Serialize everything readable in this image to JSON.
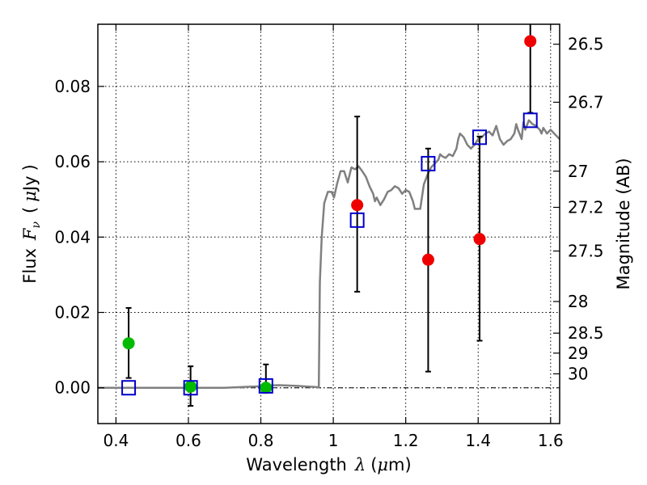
{
  "chart_data": {
    "type": "scatter",
    "title": "",
    "xlabel": {
      "prefix": "Wavelength",
      "symbol": "λ",
      "unit_open": "(",
      "unit_mu": "μ",
      "unit_rest": "m)"
    },
    "ylabel": {
      "prefix": "Flux",
      "symbol": "F",
      "subscript": "ν",
      "unit_open": "(",
      "unit_mu": "μ",
      "unit_rest": "Jy",
      "unit_close": ")"
    },
    "y2label": "Magnitude (AB)",
    "xlim": [
      0.35,
      1.625
    ],
    "ylim": [
      -0.0095,
      0.0965
    ],
    "grid": true,
    "x_ticks": [
      {
        "value": 0.4,
        "label": "0.4"
      },
      {
        "value": 0.6,
        "label": "0.6"
      },
      {
        "value": 0.8,
        "label": "0.8"
      },
      {
        "value": 1.0,
        "label": "1"
      },
      {
        "value": 1.2,
        "label": "1.2"
      },
      {
        "value": 1.4,
        "label": "1.4"
      },
      {
        "value": 1.6,
        "label": "1.6"
      }
    ],
    "y_ticks": [
      {
        "value": 0.0,
        "label": "0.00"
      },
      {
        "value": 0.02,
        "label": "0.02"
      },
      {
        "value": 0.04,
        "label": "0.04"
      },
      {
        "value": 0.06,
        "label": "0.06"
      },
      {
        "value": 0.08,
        "label": "0.08"
      }
    ],
    "y2_ticks": [
      {
        "flux": 0.0912,
        "label": "26.5"
      },
      {
        "flux": 0.0758,
        "label": "26.7"
      },
      {
        "flux": 0.0575,
        "label": "27"
      },
      {
        "flux": 0.0479,
        "label": "27.2"
      },
      {
        "flux": 0.0363,
        "label": "27.5"
      },
      {
        "flux": 0.0229,
        "label": "28"
      },
      {
        "flux": 0.0145,
        "label": "28.5"
      },
      {
        "flux": 0.0092,
        "label": "29"
      },
      {
        "flux": 0.0037,
        "label": "30"
      }
    ],
    "zero_line": 0.0,
    "series": [
      {
        "name": "model-sed",
        "kind": "line",
        "color": "#808080",
        "points": [
          [
            0.35,
            0.0
          ],
          [
            0.45,
            0.0
          ],
          [
            0.6,
            0.0
          ],
          [
            0.7,
            0.0
          ],
          [
            0.75,
            0.0002
          ],
          [
            0.8,
            0.0004
          ],
          [
            0.82,
            0.0006
          ],
          [
            0.85,
            0.0007
          ],
          [
            0.9,
            0.0005
          ],
          [
            0.95,
            0.0002
          ],
          [
            0.96,
            0.0001
          ],
          [
            0.963,
            0.028
          ],
          [
            0.968,
            0.04
          ],
          [
            0.975,
            0.049
          ],
          [
            0.985,
            0.052
          ],
          [
            0.995,
            0.052
          ],
          [
            1.002,
            0.0505
          ],
          [
            1.01,
            0.054
          ],
          [
            1.02,
            0.0575
          ],
          [
            1.03,
            0.0575
          ],
          [
            1.04,
            0.0545
          ],
          [
            1.05,
            0.0585
          ],
          [
            1.06,
            0.058
          ],
          [
            1.07,
            0.0588
          ],
          [
            1.08,
            0.0575
          ],
          [
            1.09,
            0.056
          ],
          [
            1.1,
            0.0535
          ],
          [
            1.11,
            0.0515
          ],
          [
            1.115,
            0.0495
          ],
          [
            1.12,
            0.0505
          ],
          [
            1.13,
            0.0485
          ],
          [
            1.14,
            0.05
          ],
          [
            1.15,
            0.052
          ],
          [
            1.16,
            0.0525
          ],
          [
            1.17,
            0.0535
          ],
          [
            1.18,
            0.053
          ],
          [
            1.19,
            0.0515
          ],
          [
            1.2,
            0.0525
          ],
          [
            1.21,
            0.052
          ],
          [
            1.22,
            0.0495
          ],
          [
            1.225,
            0.0475
          ],
          [
            1.24,
            0.0475
          ],
          [
            1.25,
            0.054
          ],
          [
            1.26,
            0.0565
          ],
          [
            1.27,
            0.0585
          ],
          [
            1.28,
            0.0595
          ],
          [
            1.29,
            0.0605
          ],
          [
            1.295,
            0.062
          ],
          [
            1.3,
            0.0615
          ],
          [
            1.31,
            0.061
          ],
          [
            1.32,
            0.062
          ],
          [
            1.33,
            0.0615
          ],
          [
            1.34,
            0.0635
          ],
          [
            1.345,
            0.066
          ],
          [
            1.35,
            0.0675
          ],
          [
            1.36,
            0.0665
          ],
          [
            1.37,
            0.0645
          ],
          [
            1.38,
            0.0635
          ],
          [
            1.39,
            0.0645
          ],
          [
            1.4,
            0.066
          ],
          [
            1.41,
            0.0665
          ],
          [
            1.42,
            0.0675
          ],
          [
            1.43,
            0.068
          ],
          [
            1.44,
            0.067
          ],
          [
            1.45,
            0.0695
          ],
          [
            1.46,
            0.066
          ],
          [
            1.47,
            0.0645
          ],
          [
            1.48,
            0.0655
          ],
          [
            1.49,
            0.066
          ],
          [
            1.5,
            0.0675
          ],
          [
            1.505,
            0.07
          ],
          [
            1.51,
            0.0685
          ],
          [
            1.52,
            0.066
          ],
          [
            1.525,
            0.0705
          ],
          [
            1.53,
            0.0685
          ],
          [
            1.54,
            0.071
          ],
          [
            1.55,
            0.07
          ],
          [
            1.56,
            0.0695
          ],
          [
            1.57,
            0.0685
          ],
          [
            1.575,
            0.0675
          ],
          [
            1.58,
            0.069
          ],
          [
            1.59,
            0.0675
          ],
          [
            1.6,
            0.0685
          ],
          [
            1.61,
            0.0675
          ],
          [
            1.625,
            0.066
          ]
        ]
      },
      {
        "name": "model-bands",
        "kind": "open-square",
        "color": "#0000cc",
        "points": [
          [
            0.435,
            0.0
          ],
          [
            0.606,
            0.0
          ],
          [
            0.814,
            0.0005
          ],
          [
            1.066,
            0.0445
          ],
          [
            1.262,
            0.0595
          ],
          [
            1.404,
            0.0665
          ],
          [
            1.544,
            0.071
          ]
        ]
      },
      {
        "name": "observed-optical",
        "kind": "filled-circle",
        "color": "#00bb00",
        "points": [
          [
            0.435,
            0.0118,
            0.0026,
            0.0212
          ],
          [
            0.606,
            0.0003,
            -0.0048,
            0.0057
          ],
          [
            0.814,
            0.0,
            -0.0013,
            0.0062
          ]
        ]
      },
      {
        "name": "observed-nir",
        "kind": "filled-circle",
        "color": "#ee0000",
        "points": [
          [
            1.066,
            0.0485,
            0.0255,
            0.072
          ],
          [
            1.262,
            0.034,
            0.0043,
            0.0635
          ],
          [
            1.404,
            0.0395,
            0.0125,
            0.0667
          ],
          [
            1.544,
            0.092,
            0.073,
            0.0965
          ]
        ]
      }
    ]
  }
}
